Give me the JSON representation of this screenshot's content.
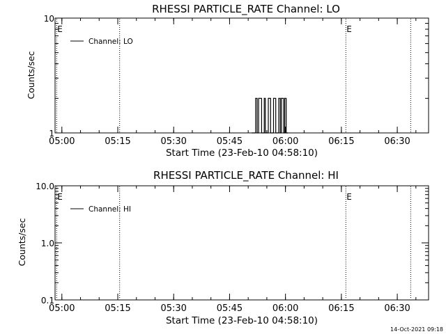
{
  "footer": {
    "timestamp": "14-Oct-2021 09:18"
  },
  "chart_data": [
    {
      "type": "line",
      "title": "RHESSI PARTICLE_RATE Channel: LO",
      "xlabel": "Start Time (23-Feb-10 04:58:10)",
      "ylabel": "Counts/sec",
      "yscale": "log",
      "ylim": [
        1,
        10
      ],
      "y_ticks": [
        {
          "value": 1,
          "label": "1"
        },
        {
          "value": 10,
          "label": "10"
        }
      ],
      "xlim_minutes": [
        -1.83,
        98.4
      ],
      "x_ticks": [
        {
          "value": 0,
          "label": "05:00"
        },
        {
          "value": 15,
          "label": "05:15"
        },
        {
          "value": 30,
          "label": "05:30"
        },
        {
          "value": 45,
          "label": "05:45"
        },
        {
          "value": 60,
          "label": "06:00"
        },
        {
          "value": 75,
          "label": "06:15"
        },
        {
          "value": 90,
          "label": "06:30"
        }
      ],
      "x_minor_step": 5,
      "markers": [
        {
          "t": -1.4,
          "label": "E"
        },
        {
          "t": 15.5,
          "label": ""
        },
        {
          "t": 76.2,
          "label": "E"
        },
        {
          "t": 93.6,
          "label": ""
        }
      ],
      "legend": {
        "label": "Channel: LO",
        "position": "top-left"
      },
      "series": [
        {
          "name": "Channel: LO",
          "t": [
            51.0,
            51.5,
            52.0,
            52.4,
            52.8,
            53.2,
            53.6,
            54.0,
            54.3,
            54.6,
            55.0,
            55.4,
            55.7,
            56.0,
            56.4,
            56.8,
            57.1,
            57.4,
            57.8,
            58.2,
            58.6,
            58.9,
            59.2,
            59.5,
            59.8,
            60.2,
            60.5
          ],
          "values": [
            1,
            1,
            2,
            1,
            2,
            2,
            1,
            1,
            2,
            1,
            1,
            2,
            2,
            1,
            1,
            2,
            2,
            1,
            1,
            2,
            1,
            2,
            2,
            1,
            2,
            1,
            1
          ]
        }
      ]
    },
    {
      "type": "line",
      "title": "RHESSI PARTICLE_RATE Channel: HI",
      "xlabel": "Start Time (23-Feb-10 04:58:10)",
      "ylabel": "Counts/sec",
      "yscale": "log",
      "ylim": [
        0.1,
        10
      ],
      "y_ticks": [
        {
          "value": 0.1,
          "label": "0.1"
        },
        {
          "value": 1,
          "label": "1.0"
        },
        {
          "value": 10,
          "label": "10.0"
        }
      ],
      "xlim_minutes": [
        -1.83,
        98.4
      ],
      "x_ticks": [
        {
          "value": 0,
          "label": "05:00"
        },
        {
          "value": 15,
          "label": "05:15"
        },
        {
          "value": 30,
          "label": "05:30"
        },
        {
          "value": 45,
          "label": "05:45"
        },
        {
          "value": 60,
          "label": "06:00"
        },
        {
          "value": 75,
          "label": "06:15"
        },
        {
          "value": 90,
          "label": "06:30"
        }
      ],
      "x_minor_step": 5,
      "markers": [
        {
          "t": -1.4,
          "label": "E"
        },
        {
          "t": 15.5,
          "label": ""
        },
        {
          "t": 76.2,
          "label": "E"
        },
        {
          "t": 93.6,
          "label": ""
        }
      ],
      "legend": {
        "label": "Channel: HI",
        "position": "top-left"
      },
      "series": [
        {
          "name": "Channel: HI",
          "t": [],
          "values": []
        }
      ]
    }
  ]
}
